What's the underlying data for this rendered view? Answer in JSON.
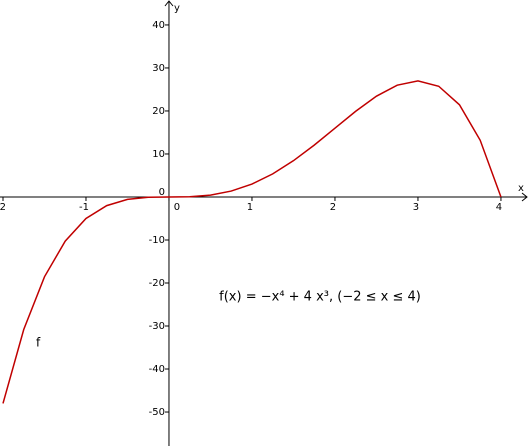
{
  "chart_data": {
    "type": "line",
    "annotations": [
      "f(x) = −x⁴ + 4 x³,   (−2 ≤ x ≤ 4)"
    ],
    "xlabel": "x",
    "ylabel": "y",
    "x": [
      -2,
      -1.75,
      -1.5,
      -1.25,
      -1,
      -0.75,
      -0.5,
      -0.25,
      0,
      0.25,
      0.5,
      0.75,
      1,
      1.25,
      1.5,
      1.75,
      2,
      2.25,
      2.5,
      2.75,
      3,
      3.25,
      3.5,
      3.75,
      4
    ],
    "series": [
      {
        "name": "f",
        "color": "#c00000",
        "values": [
          -48,
          -30.8164,
          -18.5625,
          -10.2539,
          -5,
          -2.0039,
          -0.5625,
          -0.0664,
          0,
          0.0586,
          0.4375,
          1.3711,
          3,
          5.3711,
          8.4375,
          12.0586,
          16,
          19.9336,
          23.4375,
          25.9961,
          27,
          25.7461,
          21.4375,
          13.1836,
          0
        ]
      }
    ],
    "xlim": [
      -2.036,
      4.35
    ],
    "ylim": [
      -57.9,
      45.8
    ],
    "xticks": [
      -2,
      -1,
      0,
      1,
      2,
      3,
      4
    ],
    "yticks": [
      -50,
      -40,
      -30,
      -20,
      -10,
      0,
      10,
      20,
      30,
      40
    ],
    "grid": false
  }
}
